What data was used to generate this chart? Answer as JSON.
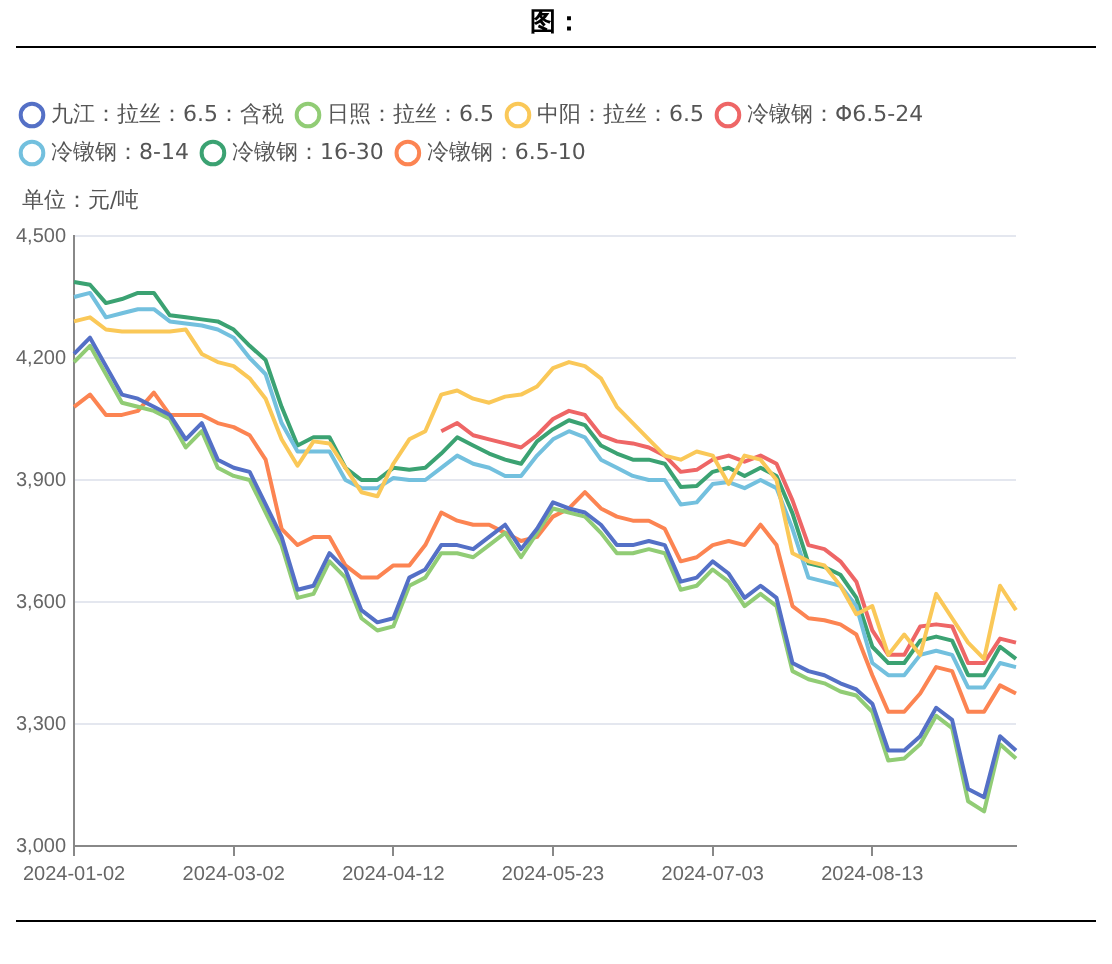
{
  "chart_data": {
    "type": "line",
    "title": "图：",
    "ylabel": "单位：元/吨",
    "categories": [
      "2024-01-02",
      null,
      null,
      null,
      null,
      null,
      null,
      null,
      null,
      null,
      "2024-03-02",
      null,
      null,
      null,
      null,
      null,
      null,
      null,
      null,
      null,
      "2024-04-12",
      null,
      null,
      null,
      null,
      null,
      null,
      null,
      null,
      null,
      "2024-05-23",
      null,
      null,
      null,
      null,
      null,
      null,
      null,
      null,
      null,
      "2024-07-03",
      null,
      null,
      null,
      null,
      null,
      null,
      null,
      null,
      null,
      "2024-08-13",
      null,
      null,
      null,
      null,
      null,
      null,
      null,
      null,
      null
    ],
    "ylim": [
      3000,
      4500
    ],
    "yticks": [
      {
        "value": 3000,
        "label": "3,000"
      },
      {
        "value": 3300,
        "label": "3,300"
      },
      {
        "value": 3600,
        "label": "3,600"
      },
      {
        "value": 3900,
        "label": "3,900"
      },
      {
        "value": 4200,
        "label": "4,200"
      },
      {
        "value": 4500,
        "label": "4,500"
      }
    ],
    "grid": "y",
    "legend": "top",
    "marker": "none",
    "line_style": "solid",
    "series": [
      {
        "name": "九江：拉丝：6.5：含税",
        "color": "#5470c6",
        "values": [
          4210,
          4250,
          4180,
          4110,
          4100,
          4080,
          4060,
          4000,
          4040,
          3950,
          3930,
          3920,
          3840,
          3760,
          3630,
          3640,
          3720,
          3680,
          3580,
          3550,
          3560,
          3660,
          3680,
          3740,
          3740,
          3730,
          3760,
          3790,
          3730,
          3780,
          3845,
          3830,
          3820,
          3790,
          3740,
          3740,
          3750,
          3740,
          3650,
          3660,
          3700,
          3670,
          3610,
          3640,
          3610,
          3450,
          3430,
          3420,
          3400,
          3385,
          3350,
          3235,
          3235,
          3270,
          3340,
          3310,
          3140,
          3120,
          3270,
          3235
        ]
      },
      {
        "name": "日照：拉丝：6.5",
        "color": "#91cc75",
        "values": [
          4190,
          4230,
          4160,
          4090,
          4080,
          4070,
          4050,
          3980,
          4020,
          3930,
          3910,
          3900,
          3820,
          3740,
          3610,
          3620,
          3700,
          3660,
          3560,
          3530,
          3540,
          3640,
          3660,
          3720,
          3720,
          3710,
          3740,
          3770,
          3710,
          3770,
          3830,
          3820,
          3810,
          3770,
          3720,
          3720,
          3730,
          3720,
          3630,
          3640,
          3680,
          3650,
          3590,
          3620,
          3590,
          3430,
          3410,
          3400,
          3380,
          3370,
          3330,
          3210,
          3215,
          3250,
          3320,
          3290,
          3110,
          3085,
          3250,
          3215
        ]
      },
      {
        "name": "中阳：拉丝：6.5",
        "color": "#fac858",
        "values": [
          4290,
          4300,
          4270,
          4265,
          4265,
          4265,
          4265,
          4270,
          4210,
          4190,
          4180,
          4150,
          4100,
          4000,
          3935,
          3995,
          3990,
          3930,
          3870,
          3860,
          3940,
          4000,
          4020,
          4110,
          4120,
          4100,
          4090,
          4105,
          4110,
          4130,
          4175,
          4190,
          4180,
          4150,
          4080,
          4040,
          4000,
          3960,
          3950,
          3970,
          3960,
          3890,
          3960,
          3950,
          3900,
          3720,
          3700,
          3690,
          3640,
          3570,
          3590,
          3470,
          3520,
          3470,
          3620,
          3560,
          3500,
          3460,
          3640,
          3580
        ]
      },
      {
        "name": "冷镦钢：Φ6.5-24",
        "color": "#ee6666",
        "values": [
          null,
          null,
          null,
          null,
          null,
          null,
          null,
          null,
          null,
          null,
          null,
          null,
          null,
          null,
          null,
          null,
          null,
          null,
          null,
          null,
          null,
          null,
          null,
          4020,
          4040,
          4010,
          4000,
          3990,
          3980,
          4010,
          4050,
          4070,
          4060,
          4010,
          3995,
          3990,
          3980,
          3960,
          3920,
          3925,
          3950,
          3960,
          3945,
          3960,
          3940,
          3850,
          3740,
          3730,
          3700,
          3650,
          3530,
          3470,
          3470,
          3540,
          3545,
          3540,
          3450,
          3450,
          3510,
          3500
        ]
      },
      {
        "name": "冷镦钢：8-14",
        "color": "#73c0de",
        "values": [
          4350,
          4360,
          4300,
          4310,
          4320,
          4320,
          4290,
          4285,
          4280,
          4270,
          4250,
          4200,
          4160,
          4040,
          3970,
          3970,
          3970,
          3900,
          3880,
          3880,
          3905,
          3900,
          3900,
          3930,
          3960,
          3940,
          3930,
          3910,
          3910,
          3960,
          4000,
          4020,
          4005,
          3950,
          3930,
          3910,
          3900,
          3900,
          3840,
          3845,
          3890,
          3895,
          3880,
          3900,
          3880,
          3780,
          3660,
          3650,
          3640,
          3590,
          3450,
          3420,
          3420,
          3470,
          3480,
          3470,
          3390,
          3390,
          3450,
          3440
        ]
      },
      {
        "name": "冷镦钢：16-30",
        "color": "#3ba272",
        "values": [
          4387,
          4380,
          4335,
          4345,
          4360,
          4360,
          4305,
          4300,
          4295,
          4290,
          4270,
          4230,
          4195,
          4080,
          3985,
          4005,
          4005,
          3930,
          3900,
          3900,
          3930,
          3925,
          3930,
          3965,
          4005,
          3985,
          3965,
          3950,
          3940,
          3995,
          4025,
          4047,
          4035,
          3985,
          3965,
          3950,
          3950,
          3940,
          3883,
          3885,
          3920,
          3930,
          3910,
          3930,
          3910,
          3818,
          3695,
          3686,
          3667,
          3611,
          3490,
          3450,
          3450,
          3505,
          3515,
          3505,
          3420,
          3420,
          3490,
          3460
        ]
      },
      {
        "name": "冷镦钢：6.5-10",
        "color": "#fc8452",
        "values": [
          4080,
          4110,
          4060,
          4060,
          4070,
          4115,
          4060,
          4060,
          4060,
          4040,
          4030,
          4010,
          3950,
          3780,
          3740,
          3760,
          3760,
          3690,
          3660,
          3660,
          3690,
          3690,
          3740,
          3820,
          3800,
          3790,
          3790,
          3770,
          3750,
          3760,
          3810,
          3830,
          3870,
          3830,
          3810,
          3800,
          3800,
          3780,
          3700,
          3710,
          3740,
          3750,
          3740,
          3790,
          3740,
          3590,
          3560,
          3555,
          3545,
          3520,
          3420,
          3330,
          3330,
          3375,
          3440,
          3430,
          3330,
          3330,
          3395,
          3375
        ]
      }
    ]
  }
}
